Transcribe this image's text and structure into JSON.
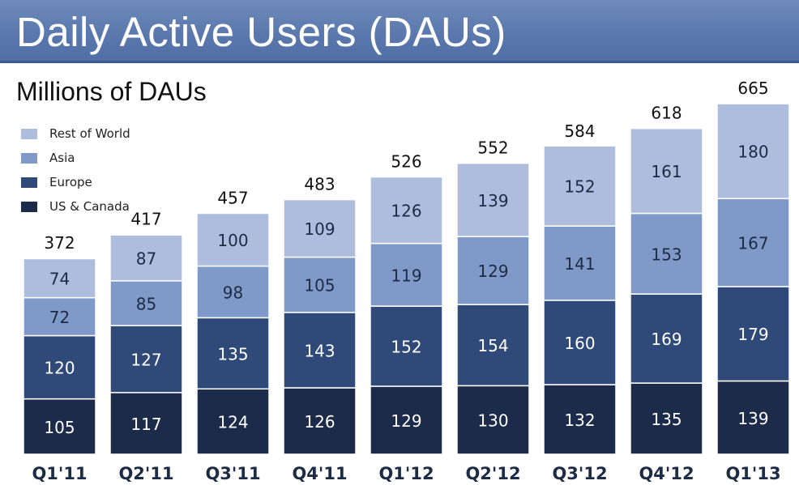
{
  "slide": {
    "title": "Daily Active Users (DAUs)",
    "subtitle": "Millions of DAUs"
  },
  "colors": {
    "header": "#5a78ad",
    "us_canada": "#1d2b4a",
    "europe": "#2f4a78",
    "asia": "#7f9ac8",
    "rest_of_world": "#aebdde",
    "label_dark": "#ffffff",
    "label_light": "#1e2b44"
  },
  "chart_data": {
    "type": "bar",
    "stacked": true,
    "title": "Millions of DAUs",
    "categories": [
      "Q1'11",
      "Q2'11",
      "Q3'11",
      "Q4'11",
      "Q1'12",
      "Q2'12",
      "Q3'12",
      "Q4'12",
      "Q1'13"
    ],
    "series": [
      {
        "name": "US & Canada",
        "color": "#1d2b4a",
        "values": [
          105,
          117,
          124,
          126,
          129,
          130,
          132,
          135,
          139
        ]
      },
      {
        "name": "Europe",
        "color": "#2f4a78",
        "values": [
          120,
          127,
          135,
          143,
          152,
          154,
          160,
          169,
          179
        ]
      },
      {
        "name": "Asia",
        "color": "#7f9ac8",
        "values": [
          72,
          85,
          98,
          105,
          119,
          129,
          141,
          153,
          167
        ]
      },
      {
        "name": "Rest of World",
        "color": "#aebdde",
        "values": [
          74,
          87,
          100,
          109,
          126,
          139,
          152,
          161,
          180
        ]
      }
    ],
    "totals": [
      372,
      417,
      457,
      483,
      526,
      552,
      584,
      618,
      665
    ],
    "legend_order": [
      "Rest of World",
      "Asia",
      "Europe",
      "US & Canada"
    ],
    "legend_position": "top-left",
    "grid": false
  }
}
